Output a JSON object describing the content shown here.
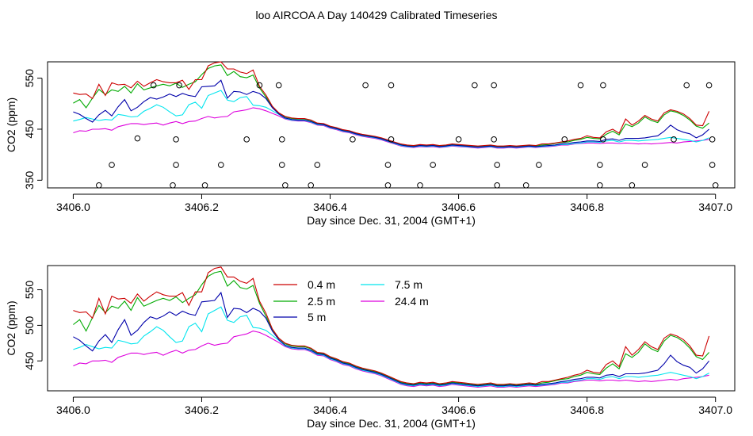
{
  "figure": {
    "title": "loo AIRCOA A  Day 140429  Calibrated Timeseries"
  },
  "colors": {
    "0.4 m": "#cc0000",
    "2.5 m": "#00aa00",
    "5 m": "#0000aa",
    "7.5 m": "#00e5ee",
    "24.4 m": "#dd00dd",
    "axes": "#000000"
  },
  "chart_data": [
    {
      "type": "line",
      "panel": "top",
      "xlabel": "Day since Dec. 31, 2004 (GMT+1)",
      "ylabel": "CO2 (ppm)",
      "xlim": [
        3405.96,
        3407.03
      ],
      "ylim": [
        335,
        582
      ],
      "xticks": [
        3406.0,
        3406.2,
        3406.4,
        3406.6,
        3406.8,
        3407.0
      ],
      "xtick_labels": [
        "3406.0",
        "3406.2",
        "3406.4",
        "3406.6",
        "3406.8",
        "3407.0"
      ],
      "yticks": [
        350,
        450,
        550
      ],
      "ytick_labels": [
        "350",
        "450",
        "550"
      ],
      "grid": false,
      "legend": "none",
      "x": [
        3406.0,
        3406.01,
        3406.02,
        3406.03,
        3406.04,
        3406.05,
        3406.06,
        3406.07,
        3406.08,
        3406.09,
        3406.1,
        3406.11,
        3406.12,
        3406.13,
        3406.14,
        3406.15,
        3406.16,
        3406.17,
        3406.18,
        3406.19,
        3406.2,
        3406.21,
        3406.22,
        3406.23,
        3406.24,
        3406.25,
        3406.26,
        3406.27,
        3406.28,
        3406.29,
        3406.3,
        3406.31,
        3406.32,
        3406.33,
        3406.34,
        3406.35,
        3406.36,
        3406.37,
        3406.38,
        3406.39,
        3406.4,
        3406.41,
        3406.42,
        3406.43,
        3406.44,
        3406.45,
        3406.46,
        3406.47,
        3406.48,
        3406.49,
        3406.5,
        3406.51,
        3406.52,
        3406.53,
        3406.54,
        3406.55,
        3406.56,
        3406.57,
        3406.58,
        3406.59,
        3406.6,
        3406.61,
        3406.62,
        3406.63,
        3406.64,
        3406.65,
        3406.66,
        3406.67,
        3406.68,
        3406.69,
        3406.7,
        3406.71,
        3406.72,
        3406.73,
        3406.74,
        3406.75,
        3406.76,
        3406.77,
        3406.78,
        3406.79,
        3406.8,
        3406.81,
        3406.82,
        3406.83,
        3406.84,
        3406.85,
        3406.86,
        3406.87,
        3406.88,
        3406.89,
        3406.9,
        3406.91,
        3406.92,
        3406.93,
        3406.94,
        3406.95,
        3406.96,
        3406.97,
        3406.98,
        3406.99
      ],
      "series": [
        {
          "name": "0.4 m",
          "values": [
            521,
            518,
            519,
            510,
            538,
            516,
            541,
            537,
            538,
            531,
            544,
            534,
            541,
            547,
            543,
            541,
            541,
            546,
            528,
            547,
            547,
            574,
            580,
            582,
            568,
            568,
            562,
            559,
            566,
            534,
            517,
            495,
            482,
            475,
            472,
            471,
            471,
            468,
            462,
            461,
            456,
            453,
            449,
            447,
            443,
            440,
            438,
            436,
            433,
            429,
            425,
            421,
            419,
            418,
            420,
            419,
            420,
            418,
            419,
            421,
            420,
            419,
            418,
            417,
            418,
            419,
            417,
            417,
            418,
            417,
            418,
            419,
            418,
            421,
            421,
            423,
            425,
            427,
            430,
            432,
            437,
            434,
            433,
            445,
            450,
            442,
            470,
            458,
            466,
            477,
            470,
            466,
            482,
            488,
            485,
            480,
            471,
            458,
            457,
            485
          ]
        },
        {
          "name": "2.5 m",
          "values": [
            501,
            508,
            492,
            511,
            528,
            518,
            527,
            524,
            534,
            521,
            539,
            527,
            531,
            535,
            538,
            535,
            540,
            532,
            538,
            543,
            557,
            569,
            574,
            576,
            555,
            563,
            553,
            551,
            556,
            531,
            513,
            494,
            482,
            474,
            471,
            470,
            470,
            467,
            461,
            460,
            455,
            452,
            448,
            446,
            442,
            439,
            437,
            435,
            432,
            428,
            424,
            420,
            418,
            417,
            419,
            418,
            419,
            417,
            418,
            420,
            419,
            418,
            417,
            416,
            417,
            418,
            416,
            416,
            417,
            416,
            417,
            418,
            417,
            419,
            420,
            422,
            424,
            425,
            428,
            430,
            434,
            432,
            431,
            440,
            446,
            439,
            460,
            455,
            462,
            474,
            467,
            463,
            478,
            486,
            483,
            477,
            468,
            456,
            452,
            462
          ]
        },
        {
          "name": "5 m",
          "values": [
            484,
            479,
            471,
            464,
            478,
            487,
            476,
            494,
            508,
            486,
            493,
            504,
            512,
            509,
            513,
            519,
            514,
            520,
            516,
            514,
            533,
            534,
            535,
            546,
            511,
            524,
            523,
            518,
            524,
            520,
            510,
            492,
            480,
            472,
            469,
            468,
            468,
            465,
            460,
            459,
            454,
            451,
            447,
            445,
            441,
            438,
            436,
            434,
            431,
            427,
            423,
            419,
            417,
            416,
            418,
            417,
            418,
            416,
            417,
            419,
            418,
            417,
            416,
            415,
            416,
            417,
            415,
            415,
            416,
            415,
            416,
            417,
            416,
            417,
            418,
            419,
            421,
            422,
            424,
            425,
            427,
            427,
            426,
            430,
            431,
            428,
            432,
            432,
            432,
            433,
            435,
            437,
            446,
            458,
            449,
            444,
            441,
            433,
            439,
            450
          ]
        },
        {
          "name": "7.5 m",
          "values": [
            466,
            469,
            473,
            470,
            467,
            469,
            468,
            479,
            477,
            474,
            475,
            485,
            491,
            498,
            493,
            484,
            476,
            478,
            498,
            503,
            491,
            516,
            521,
            526,
            507,
            504,
            512,
            514,
            497,
            496,
            493,
            486,
            479,
            471,
            468,
            467,
            467,
            464,
            459,
            458,
            453,
            450,
            446,
            444,
            440,
            437,
            435,
            433,
            430,
            426,
            422,
            418,
            416,
            415,
            417,
            416,
            417,
            415,
            416,
            418,
            417,
            416,
            415,
            414,
            415,
            416,
            414,
            414,
            415,
            414,
            415,
            416,
            415,
            416,
            417,
            418,
            420,
            420,
            422,
            423,
            425,
            425,
            424,
            427,
            428,
            425,
            428,
            428,
            427,
            428,
            429,
            430,
            432,
            434,
            432,
            430,
            428,
            425,
            428,
            433
          ]
        },
        {
          "name": "24.4 m",
          "values": [
            443,
            447,
            446,
            450,
            450,
            451,
            448,
            455,
            458,
            461,
            461,
            459,
            461,
            462,
            458,
            462,
            465,
            461,
            465,
            466,
            471,
            475,
            472,
            474,
            475,
            484,
            486,
            488,
            492,
            490,
            486,
            481,
            476,
            470,
            467,
            466,
            466,
            463,
            458,
            457,
            452,
            449,
            445,
            443,
            439,
            436,
            434,
            432,
            429,
            425,
            421,
            417,
            415,
            414,
            416,
            415,
            416,
            414,
            415,
            417,
            416,
            415,
            414,
            413,
            414,
            415,
            413,
            413,
            414,
            413,
            414,
            415,
            414,
            415,
            416,
            417,
            419,
            419,
            421,
            422,
            423,
            423,
            422,
            423,
            423,
            422,
            423,
            422,
            421,
            422,
            421,
            422,
            423,
            424,
            423,
            425,
            426,
            427,
            428,
            430
          ]
        }
      ],
      "points": [
        {
          "x": 3406.04,
          "y": 340
        },
        {
          "x": 3406.06,
          "y": 380
        },
        {
          "x": 3406.1,
          "y": 432
        },
        {
          "x": 3406.125,
          "y": 536
        },
        {
          "x": 3406.155,
          "y": 340
        },
        {
          "x": 3406.16,
          "y": 380
        },
        {
          "x": 3406.16,
          "y": 430
        },
        {
          "x": 3406.165,
          "y": 536
        },
        {
          "x": 3406.205,
          "y": 340
        },
        {
          "x": 3406.23,
          "y": 380
        },
        {
          "x": 3406.27,
          "y": 430
        },
        {
          "x": 3406.29,
          "y": 536
        },
        {
          "x": 3406.32,
          "y": 536
        },
        {
          "x": 3406.325,
          "y": 430
        },
        {
          "x": 3406.325,
          "y": 380
        },
        {
          "x": 3406.33,
          "y": 340
        },
        {
          "x": 3406.37,
          "y": 340
        },
        {
          "x": 3406.38,
          "y": 380
        },
        {
          "x": 3406.435,
          "y": 430
        },
        {
          "x": 3406.455,
          "y": 536
        },
        {
          "x": 3406.49,
          "y": 340
        },
        {
          "x": 3406.49,
          "y": 380
        },
        {
          "x": 3406.495,
          "y": 430
        },
        {
          "x": 3406.495,
          "y": 536
        },
        {
          "x": 3406.54,
          "y": 340
        },
        {
          "x": 3406.56,
          "y": 380
        },
        {
          "x": 3406.6,
          "y": 430
        },
        {
          "x": 3406.625,
          "y": 536
        },
        {
          "x": 3406.655,
          "y": 536
        },
        {
          "x": 3406.655,
          "y": 430
        },
        {
          "x": 3406.66,
          "y": 380
        },
        {
          "x": 3406.66,
          "y": 340
        },
        {
          "x": 3406.705,
          "y": 340
        },
        {
          "x": 3406.725,
          "y": 380
        },
        {
          "x": 3406.765,
          "y": 430
        },
        {
          "x": 3406.79,
          "y": 536
        },
        {
          "x": 3406.82,
          "y": 380
        },
        {
          "x": 3406.82,
          "y": 340
        },
        {
          "x": 3406.825,
          "y": 430
        },
        {
          "x": 3406.825,
          "y": 536
        },
        {
          "x": 3406.87,
          "y": 340
        },
        {
          "x": 3406.89,
          "y": 380
        },
        {
          "x": 3406.935,
          "y": 430
        },
        {
          "x": 3406.955,
          "y": 536
        },
        {
          "x": 3406.99,
          "y": 536
        },
        {
          "x": 3406.995,
          "y": 430
        },
        {
          "x": 3406.995,
          "y": 380
        },
        {
          "x": 3407.0,
          "y": 340
        }
      ]
    },
    {
      "type": "line",
      "panel": "bottom",
      "xlabel": "Day since Dec. 31, 2004 (GMT+1)",
      "ylabel": "CO2 (ppm)",
      "xlim": [
        3405.96,
        3407.03
      ],
      "ylim": [
        408,
        584
      ],
      "xticks": [
        3406.0,
        3406.2,
        3406.4,
        3406.6,
        3406.8,
        3407.0
      ],
      "xtick_labels": [
        "3406.0",
        "3406.2",
        "3406.4",
        "3406.6",
        "3406.8",
        "3407.0"
      ],
      "yticks": [
        450,
        500,
        550
      ],
      "ytick_labels": [
        "450",
        "500",
        "550"
      ],
      "grid": false,
      "legend": "top-center",
      "legend_labels": [
        "0.4 m",
        "2.5 m",
        "5 m",
        "7.5 m",
        "24.4 m"
      ],
      "x": "same as top panel",
      "series": "same as top panel"
    }
  ]
}
